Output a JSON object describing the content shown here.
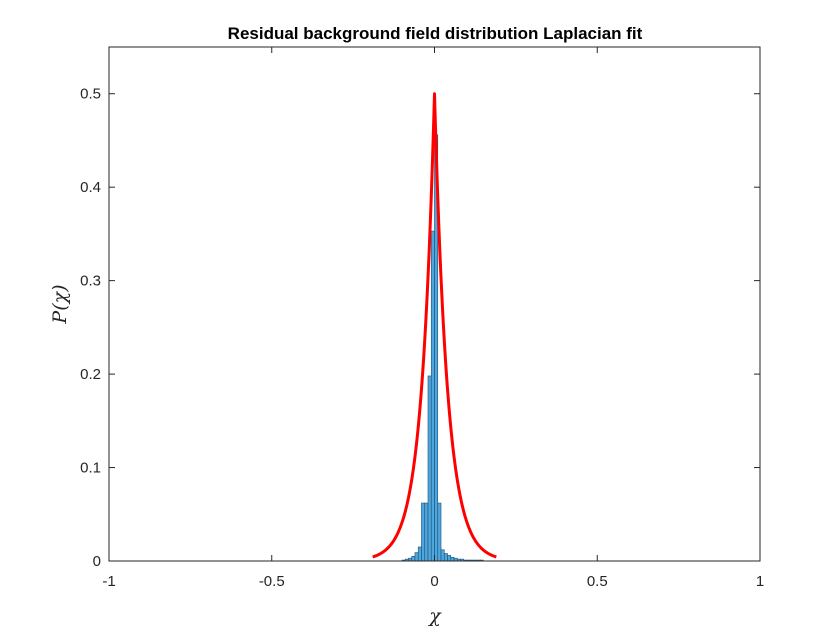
{
  "chart_data": {
    "type": "bar",
    "title": "Residual background field distribution Laplacian fit",
    "xlabel": "χ",
    "ylabel": "P(χ)",
    "xlim": [
      -1,
      1
    ],
    "ylim": [
      0,
      0.55
    ],
    "xticks": [
      -1,
      -0.5,
      0,
      0.5,
      1
    ],
    "xtick_labels": [
      "-1",
      "-0.5",
      "0",
      "0.5",
      "1"
    ],
    "yticks": [
      0,
      0.1,
      0.2,
      0.3,
      0.4,
      0.5
    ],
    "ytick_labels": [
      "0",
      "0.1",
      "0.2",
      "0.3",
      "0.4",
      "0.5"
    ],
    "grid": false,
    "legend": "none",
    "series": [
      {
        "type": "histogram",
        "color": "#4DA6DE",
        "edge_color": "#1F4F73",
        "bin_edges": [
          -0.1,
          -0.09,
          -0.08,
          -0.07,
          -0.06,
          -0.05,
          -0.04,
          -0.03,
          -0.02,
          -0.01,
          0,
          0.01,
          0.02,
          0.03,
          0.04,
          0.05,
          0.06,
          0.07,
          0.08,
          0.09,
          0.1,
          0.11,
          0.12,
          0.13,
          0.14,
          0.15
        ],
        "values": [
          0.001,
          0.002,
          0.003,
          0.005,
          0.009,
          0.015,
          0.062,
          0.062,
          0.198,
          0.353,
          0.456,
          0.062,
          0.012,
          0.008,
          0.006,
          0.004,
          0.003,
          0.002,
          0.002,
          0.001,
          0.001,
          0.001,
          0.001,
          0.001,
          0.001
        ]
      },
      {
        "type": "line",
        "color": "#FF0000",
        "line_width": 3,
        "x_range": [
          -0.19,
          0.19
        ],
        "peak": 0.5,
        "scale": 0.04
      }
    ]
  }
}
